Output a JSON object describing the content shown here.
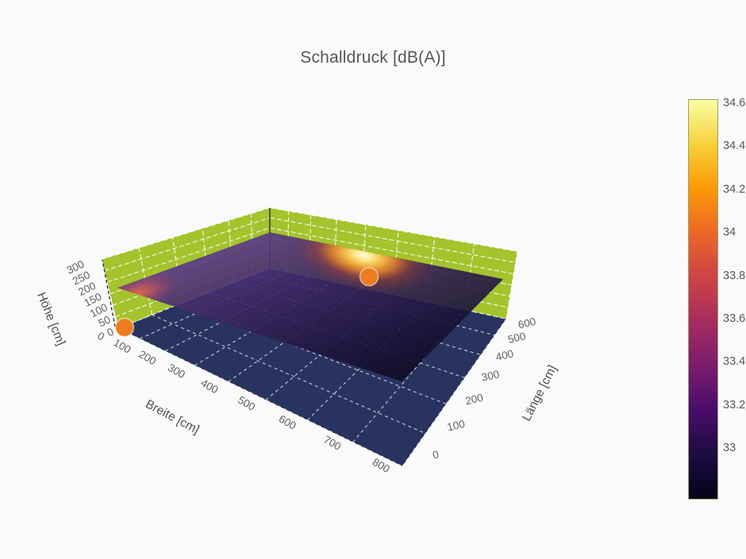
{
  "title": "Schalldruck [dB(A)]",
  "scene": {
    "x_axis": {
      "title": "Breite [cm]",
      "ticks": [
        "0",
        "100",
        "200",
        "300",
        "400",
        "500",
        "600",
        "700",
        "800"
      ]
    },
    "y_axis": {
      "title": "Länge [cm]",
      "ticks": [
        "0",
        "100",
        "200",
        "300",
        "400",
        "500",
        "600"
      ]
    },
    "z_axis": {
      "title": "Höhe [cm]",
      "ticks": [
        "0",
        "50",
        "100",
        "150",
        "200",
        "250",
        "300"
      ]
    }
  },
  "colorbar": {
    "ticks": [
      "34.6",
      "34.4",
      "34.2",
      "34",
      "33.8",
      "33.6",
      "33.4",
      "33.2",
      "33"
    ],
    "gradient_top_to_bottom": [
      "#fcffa4",
      "#f7d13d",
      "#fb9b06",
      "#ed6925",
      "#cf4446",
      "#a52c60",
      "#781c6d",
      "#4a0c6b",
      "#1b0c41",
      "#050417"
    ]
  },
  "colors": {
    "background": "#fafafa",
    "wall": "#a4c32d",
    "floor": "#28345f",
    "gridline": "#ffffff",
    "marker": "#ed7d1f",
    "text": "#5f5f5f",
    "surface_dark": "#0a0716",
    "surface_purple": "#6f4ba3",
    "hotspot_core": "#fffbe0"
  },
  "chart_data": {
    "type": "heatmap",
    "title": "Schalldruck [dB(A)]",
    "xlabel": "Breite [cm]",
    "ylabel": "Länge [cm]",
    "zlabel": "Höhe [cm]",
    "x_range": [
      0,
      800
    ],
    "y_range": [
      0,
      600
    ],
    "z_range": [
      0,
      300
    ],
    "x_tick_step": 100,
    "y_tick_step": 100,
    "z_tick_step": 50,
    "color_range_dBA": [
      32.8,
      34.6
    ],
    "colorbar_ticks": [
      34.6,
      34.4,
      34.2,
      34.0,
      33.8,
      33.6,
      33.4,
      33.2,
      33.0
    ],
    "colorscale": "inferno",
    "surface_description": "3D sound-pressure surface over room floor plan; flat sheet at roughly 150 cm height, colored by dB(A); bright maximum near Breite 400-500 / Länge 450-600, warm zone at Breite 0 / Länge 0",
    "x": [
      0,
      200,
      400,
      600,
      800
    ],
    "y": [
      0,
      150,
      300,
      450,
      600
    ],
    "values_dBA_estimated": [
      [
        33.9,
        33.3,
        33.1,
        33.0,
        32.9
      ],
      [
        33.6,
        33.3,
        33.1,
        33.0,
        32.9
      ],
      [
        33.4,
        33.3,
        33.2,
        33.1,
        33.0
      ],
      [
        33.3,
        33.5,
        34.0,
        33.4,
        33.1
      ],
      [
        33.3,
        33.6,
        34.6,
        33.5,
        33.1
      ]
    ],
    "source_markers": [
      {
        "approx_xy_cm": [
          30,
          0
        ],
        "color": "#ed7d1f"
      },
      {
        "approx_xy_cm": [
          430,
          450
        ],
        "color": "#ed7d1f"
      }
    ],
    "grid": true,
    "legend": false
  }
}
